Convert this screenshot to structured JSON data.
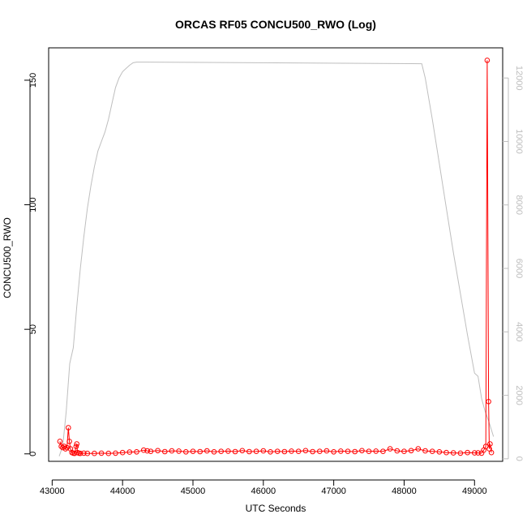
{
  "chart_data": {
    "type": "scatter",
    "title": "ORCAS RF05 CONCU500_RWO (Log)",
    "xlabel": "UTC Seconds",
    "ylabel": "CONCU500_RWO",
    "xlim": [
      42950,
      49400
    ],
    "ylim": [
      -3,
      163
    ],
    "y2lim": [
      -80,
      12950
    ],
    "grid": false,
    "x_ticks": [
      "43000",
      "44000",
      "45000",
      "46000",
      "47000",
      "48000",
      "49000"
    ],
    "y_ticks": [
      "0",
      "50",
      "100",
      "150"
    ],
    "y2_ticks": [
      "0",
      "2000",
      "4000",
      "6000",
      "8000",
      "10000",
      "12000"
    ],
    "colors": {
      "primary": "#ff0000",
      "secondary": "#bebebe",
      "axis": "#000000"
    },
    "series": [
      {
        "role": "primary",
        "axis": "left",
        "style": "points-lines",
        "x": [
          43110,
          43130,
          43150,
          43170,
          43190,
          43210,
          43230,
          43245,
          43260,
          43280,
          43300,
          43320,
          43340,
          43350,
          43360,
          43380,
          43400,
          43450,
          43500,
          43600,
          43700,
          43800,
          43900,
          44000,
          44100,
          44200,
          44300,
          44350,
          44400,
          44500,
          44600,
          44700,
          44800,
          44900,
          45000,
          45100,
          45200,
          45300,
          45400,
          45500,
          45600,
          45700,
          45800,
          45900,
          46000,
          46100,
          46200,
          46300,
          46400,
          46500,
          46600,
          46700,
          46800,
          46900,
          47000,
          47100,
          47200,
          47300,
          47400,
          47500,
          47600,
          47700,
          47800,
          47900,
          48000,
          48100,
          48200,
          48300,
          48400,
          48500,
          48600,
          48700,
          48800,
          48900,
          49000,
          49050,
          49100,
          49130,
          49160,
          49180,
          49200,
          49210,
          49220,
          49240
        ],
        "y": [
          5,
          3,
          2.5,
          3,
          2,
          2.5,
          10.5,
          5,
          2,
          0.5,
          0.3,
          0.2,
          3,
          4,
          0.5,
          0.3,
          0.2,
          0.3,
          0.2,
          0.2,
          0.3,
          0.2,
          0.3,
          0.5,
          0.7,
          0.8,
          1.5,
          1.2,
          1.0,
          1.3,
          0.9,
          1.2,
          1.1,
          0.8,
          1.0,
          0.9,
          1.2,
          0.8,
          1.0,
          1.1,
          0.9,
          1.3,
          0.9,
          1.0,
          1.2,
          0.8,
          1.0,
          0.9,
          1.1,
          1.0,
          1.3,
          0.9,
          1.0,
          1.2,
          0.8,
          1.1,
          1.0,
          0.9,
          1.3,
          1.0,
          1.1,
          1.0,
          2.0,
          1.2,
          1.0,
          1.3,
          2.0,
          1.2,
          1.0,
          0.8,
          0.5,
          0.4,
          0.3,
          0.5,
          0.4,
          0.4,
          0.3,
          1.5,
          3.0,
          158,
          21,
          2.0,
          4.0,
          0.5
        ]
      },
      {
        "role": "secondary",
        "axis": "right",
        "style": "line",
        "x": [
          43100,
          43150,
          43200,
          43250,
          43300,
          43350,
          43400,
          43450,
          43500,
          43550,
          43600,
          43650,
          43700,
          43750,
          43800,
          43850,
          43900,
          43950,
          44000,
          44050,
          44100,
          44150,
          44200,
          44250,
          44300,
          44350,
          48250,
          48300,
          48400,
          48500,
          48600,
          48700,
          48800,
          48900,
          49000,
          49050,
          49100,
          49150,
          49200,
          49270
        ],
        "y": [
          80,
          400,
          1500,
          3000,
          3500,
          4800,
          6000,
          7000,
          7900,
          8600,
          9200,
          9700,
          10000,
          10300,
          10700,
          11200,
          11700,
          12000,
          12200,
          12300,
          12400,
          12480,
          12500,
          12500,
          12500,
          12500,
          12450,
          12000,
          10700,
          9300,
          7900,
          6500,
          5200,
          3900,
          2700,
          2600,
          1900,
          1500,
          1200,
          700
        ]
      }
    ]
  }
}
